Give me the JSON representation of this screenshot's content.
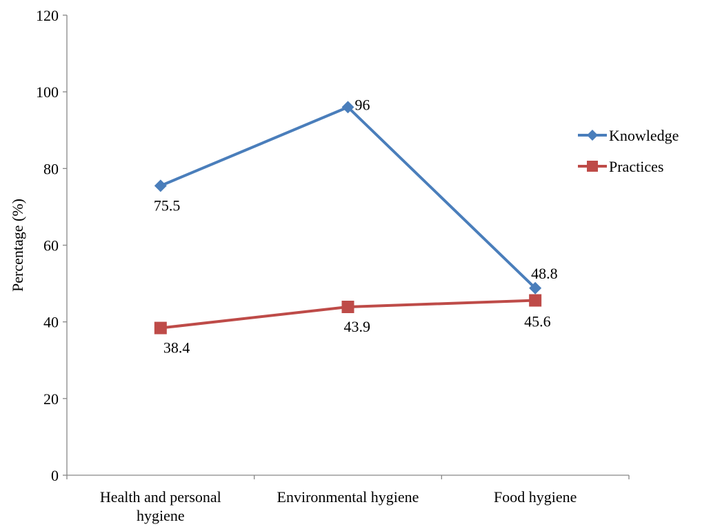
{
  "chart_data": {
    "type": "line",
    "title": "",
    "xlabel": "",
    "ylabel": "Percentage (%)",
    "ylim": [
      0,
      120
    ],
    "yticks": [
      0,
      20,
      40,
      60,
      80,
      100,
      120
    ],
    "categories": [
      [
        "Health and personal",
        "hygiene"
      ],
      [
        "Environmental hygiene"
      ],
      [
        "Food hygiene"
      ]
    ],
    "grid": false,
    "legend_position": "right",
    "series": [
      {
        "name": "Knowledge",
        "values": [
          75.5,
          96,
          48.8
        ],
        "labels": [
          "75.5",
          "96",
          "48.8"
        ],
        "color": "#4a7ebb",
        "marker": "diamond"
      },
      {
        "name": "Practices",
        "values": [
          38.4,
          43.9,
          45.6
        ],
        "labels": [
          "38.4",
          "43.9",
          "45.6"
        ],
        "color": "#be4b48",
        "marker": "square"
      }
    ]
  }
}
